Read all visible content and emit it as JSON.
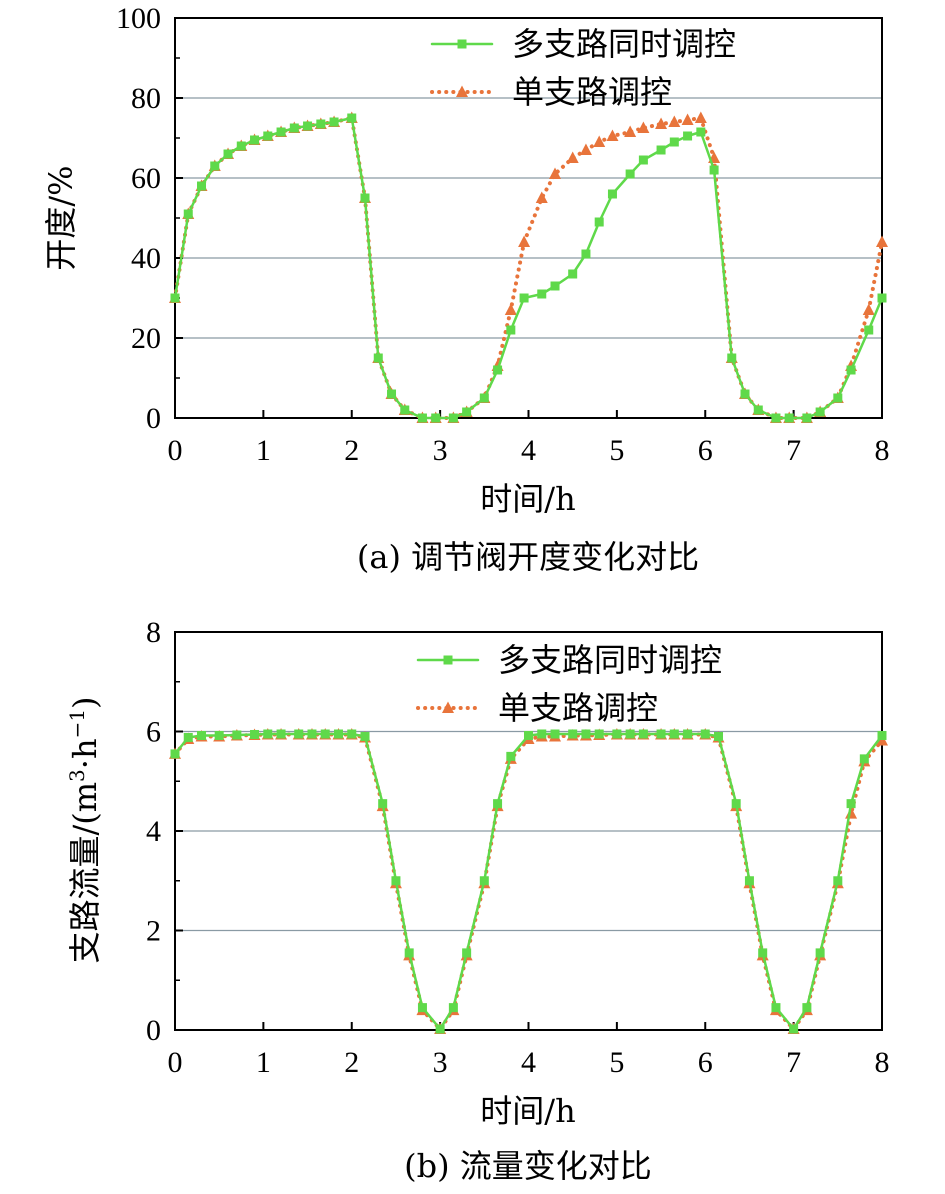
{
  "colors": {
    "multi": "#5fd94a",
    "single": "#e8743b",
    "grid": "#8a9aa4",
    "axis": "#000000"
  },
  "chart_data": [
    {
      "type": "line",
      "caption": "(a) 调节阀开度变化对比",
      "xlabel": "时间/h",
      "ylabel": "开度/%",
      "xlim": [
        0,
        8
      ],
      "ylim": [
        0,
        100
      ],
      "xticks": [
        "0",
        "1",
        "2",
        "3",
        "4",
        "5",
        "6",
        "7",
        "8"
      ],
      "yticks": [
        "0",
        "20",
        "40",
        "60",
        "80",
        "100"
      ],
      "grid": "horizontal",
      "legend_position": "top-right",
      "series": [
        {
          "name": "多支路同时调控",
          "style": "solid",
          "marker": "square",
          "x": [
            0,
            0.15,
            0.3,
            0.45,
            0.6,
            0.75,
            0.9,
            1.05,
            1.2,
            1.35,
            1.5,
            1.65,
            1.8,
            2.0,
            2.15,
            2.3,
            2.45,
            2.6,
            2.8,
            2.95,
            3.15,
            3.3,
            3.5,
            3.65,
            3.8,
            3.95,
            4.15,
            4.3,
            4.5,
            4.65,
            4.8,
            4.95,
            5.15,
            5.3,
            5.5,
            5.65,
            5.8,
            5.95,
            6.1,
            6.3,
            6.45,
            6.6,
            6.8,
            6.95,
            7.15,
            7.3,
            7.5,
            7.65,
            7.85,
            8.0
          ],
          "y": [
            30,
            51,
            58,
            63,
            66,
            68,
            69.5,
            70.5,
            71.5,
            72.5,
            73,
            73.5,
            74,
            75,
            55,
            15,
            6,
            2,
            0,
            0,
            0,
            1.5,
            5,
            12,
            22,
            30,
            31,
            33,
            36,
            41,
            49,
            56,
            61,
            64.5,
            67,
            69,
            70.5,
            71.5,
            62,
            15,
            6,
            2,
            0,
            0,
            0,
            1.5,
            5,
            12,
            22,
            30
          ]
        },
        {
          "name": "单支路调控",
          "style": "dotted",
          "marker": "triangle",
          "x": [
            0,
            0.15,
            0.3,
            0.45,
            0.6,
            0.75,
            0.9,
            1.05,
            1.2,
            1.35,
            1.5,
            1.65,
            1.8,
            2.0,
            2.15,
            2.3,
            2.45,
            2.6,
            2.8,
            2.95,
            3.15,
            3.3,
            3.5,
            3.65,
            3.8,
            3.95,
            4.15,
            4.3,
            4.5,
            4.65,
            4.8,
            4.95,
            5.15,
            5.3,
            5.5,
            5.65,
            5.8,
            5.95,
            6.1,
            6.3,
            6.45,
            6.6,
            6.8,
            6.95,
            7.15,
            7.3,
            7.5,
            7.65,
            7.85,
            8.0
          ],
          "y": [
            30,
            51,
            58,
            63,
            66,
            68,
            69.5,
            70.5,
            71.5,
            72.5,
            73,
            73.5,
            74,
            75,
            55,
            15,
            6,
            2,
            0,
            0,
            0,
            1.5,
            5,
            13,
            27,
            44,
            55,
            61,
            65,
            67,
            69,
            70.5,
            71.5,
            72.5,
            73.5,
            74,
            74.5,
            75,
            65,
            15,
            6,
            2,
            0,
            0,
            0,
            1.5,
            5,
            13,
            27,
            44
          ]
        }
      ]
    },
    {
      "type": "line",
      "caption": "(b) 流量变化对比",
      "xlabel": "时间/h",
      "ylabel_parts": {
        "main": "支路流量/(m",
        "sup1": "3",
        "mid": "·h",
        "sup2": "−1",
        "end": ")"
      },
      "xlim": [
        0,
        8
      ],
      "ylim": [
        0,
        8
      ],
      "xticks": [
        "0",
        "1",
        "2",
        "3",
        "4",
        "5",
        "6",
        "7",
        "8"
      ],
      "yticks": [
        "0",
        "2",
        "4",
        "6",
        "8"
      ],
      "grid": "horizontal",
      "legend_position": "top-right",
      "series": [
        {
          "name": "多支路同时调控",
          "style": "solid",
          "marker": "square",
          "x": [
            0,
            0.15,
            0.3,
            0.5,
            0.7,
            0.9,
            1.05,
            1.2,
            1.4,
            1.55,
            1.7,
            1.85,
            2.0,
            2.15,
            2.35,
            2.5,
            2.65,
            2.8,
            3.0,
            3.15,
            3.3,
            3.5,
            3.65,
            3.8,
            4.0,
            4.15,
            4.3,
            4.5,
            4.65,
            4.8,
            5.0,
            5.15,
            5.3,
            5.5,
            5.65,
            5.8,
            6.0,
            6.15,
            6.35,
            6.5,
            6.65,
            6.8,
            7.0,
            7.15,
            7.3,
            7.5,
            7.65,
            7.8,
            8.0
          ],
          "y": [
            5.55,
            5.88,
            5.92,
            5.92,
            5.93,
            5.94,
            5.95,
            5.95,
            5.95,
            5.95,
            5.95,
            5.95,
            5.95,
            5.9,
            4.55,
            3.0,
            1.55,
            0.45,
            0.02,
            0.45,
            1.55,
            3.0,
            4.55,
            5.5,
            5.92,
            5.95,
            5.95,
            5.95,
            5.95,
            5.95,
            5.95,
            5.95,
            5.95,
            5.95,
            5.95,
            5.95,
            5.95,
            5.9,
            4.55,
            3.0,
            1.55,
            0.45,
            0.02,
            0.45,
            1.55,
            3.0,
            4.55,
            5.45,
            5.92
          ]
        },
        {
          "name": "单支路调控",
          "style": "dotted",
          "marker": "triangle",
          "x": [
            0,
            0.15,
            0.3,
            0.5,
            0.7,
            0.9,
            1.05,
            1.2,
            1.4,
            1.55,
            1.7,
            1.85,
            2.0,
            2.15,
            2.35,
            2.5,
            2.65,
            2.8,
            3.0,
            3.15,
            3.3,
            3.5,
            3.65,
            3.8,
            4.0,
            4.15,
            4.3,
            4.5,
            4.65,
            4.8,
            5.0,
            5.15,
            5.3,
            5.5,
            5.65,
            5.8,
            6.0,
            6.15,
            6.35,
            6.5,
            6.65,
            6.8,
            7.0,
            7.15,
            7.3,
            7.5,
            7.65,
            7.8,
            8.0
          ],
          "y": [
            5.55,
            5.85,
            5.9,
            5.9,
            5.92,
            5.93,
            5.94,
            5.94,
            5.94,
            5.94,
            5.94,
            5.94,
            5.94,
            5.88,
            4.5,
            2.95,
            1.5,
            0.4,
            0.02,
            0.4,
            1.5,
            2.95,
            4.5,
            5.45,
            5.85,
            5.9,
            5.9,
            5.92,
            5.92,
            5.93,
            5.94,
            5.94,
            5.94,
            5.94,
            5.94,
            5.94,
            5.94,
            5.88,
            4.5,
            2.95,
            1.5,
            0.4,
            0.02,
            0.4,
            1.5,
            2.95,
            4.35,
            5.4,
            5.82
          ]
        }
      ]
    }
  ]
}
